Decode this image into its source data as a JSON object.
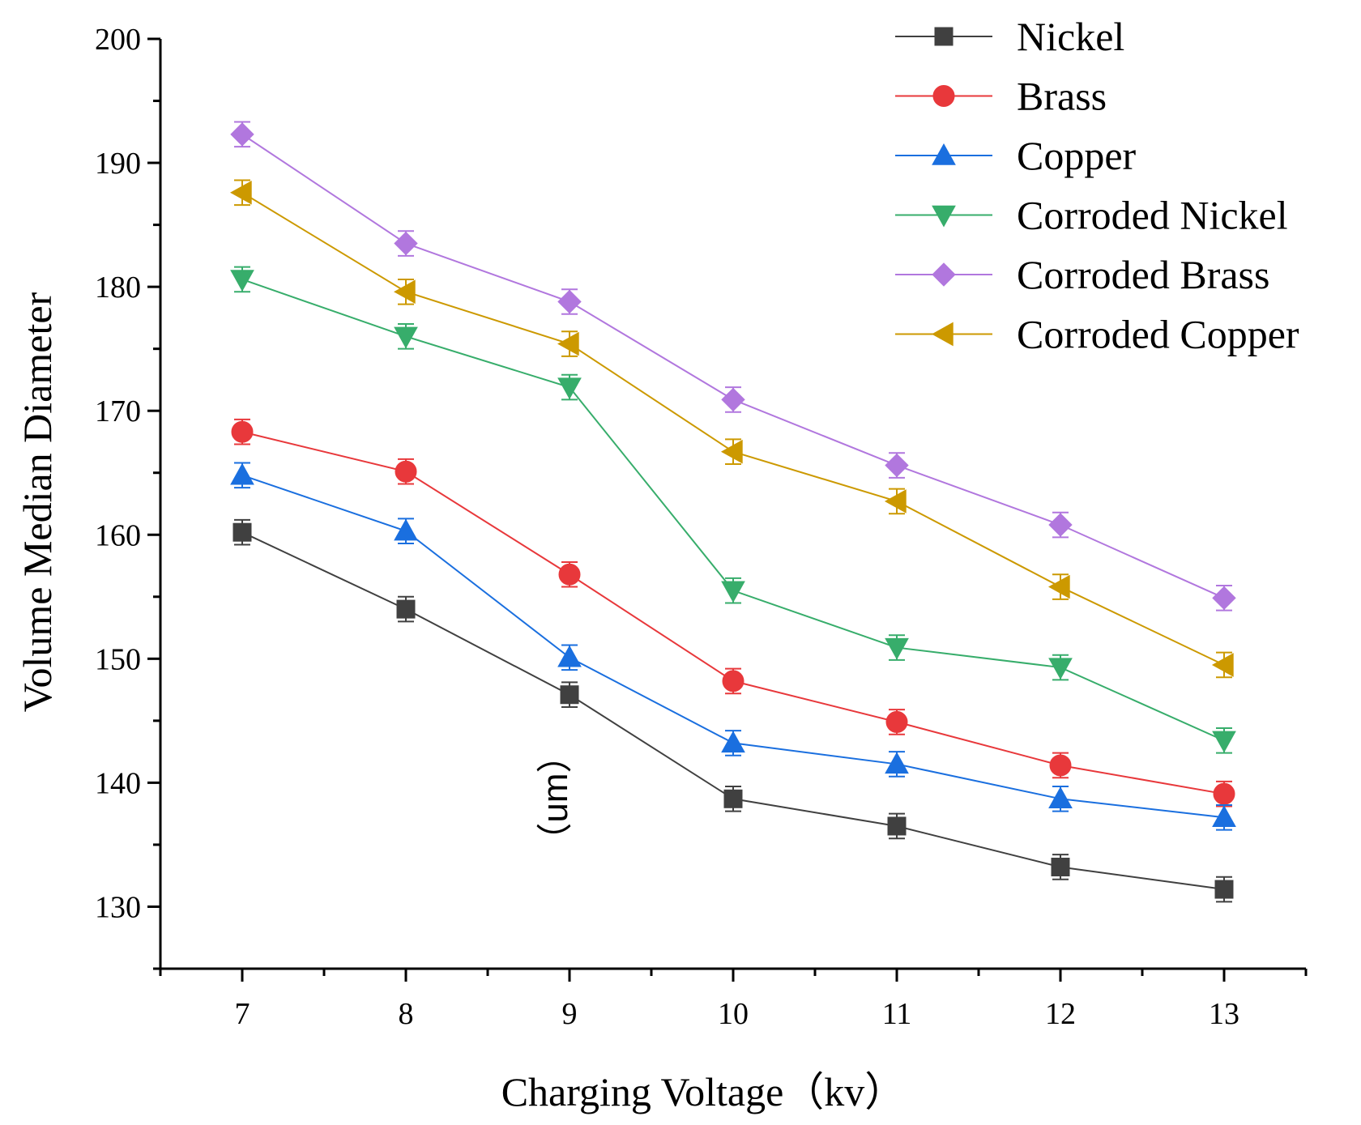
{
  "chart_data": {
    "type": "line",
    "title": "",
    "xlabel": "Charging Voltage（kv）",
    "ylabel": "Volume Median Diameter",
    "stray_label": "（um）",
    "x": [
      7,
      8,
      9,
      10,
      11,
      12,
      13
    ],
    "xlim": [
      6.5,
      13.5
    ],
    "ylim": [
      125,
      200
    ],
    "xticks": [
      "7",
      "8",
      "9",
      "10",
      "11",
      "12",
      "13"
    ],
    "yticks": [
      "130",
      "140",
      "150",
      "160",
      "170",
      "180",
      "190",
      "200"
    ],
    "legend_position": "top-right",
    "error_bar": 1.0,
    "series": [
      {
        "name": "Nickel",
        "marker": "square",
        "color": "#404040",
        "values": [
          160.2,
          154.0,
          147.1,
          138.7,
          136.5,
          133.2,
          131.4
        ]
      },
      {
        "name": "Brass",
        "marker": "circle",
        "color": "#e8383b",
        "values": [
          168.3,
          165.1,
          156.8,
          148.2,
          144.9,
          141.4,
          139.1
        ]
      },
      {
        "name": "Copper",
        "marker": "triangle-up",
        "color": "#1a6fdf",
        "values": [
          164.8,
          160.3,
          150.1,
          143.2,
          141.5,
          138.7,
          137.2
        ]
      },
      {
        "name": "Corroded Nickel",
        "marker": "triangle-down",
        "color": "#37ad6b",
        "values": [
          180.6,
          176.0,
          171.9,
          155.5,
          150.9,
          149.3,
          143.4
        ]
      },
      {
        "name": "Corroded Brass",
        "marker": "diamond",
        "color": "#b177de",
        "values": [
          192.3,
          183.5,
          178.8,
          170.9,
          165.6,
          160.8,
          154.9
        ]
      },
      {
        "name": "Corroded Copper",
        "marker": "triangle-left",
        "color": "#cc9900",
        "values": [
          187.6,
          179.6,
          175.4,
          166.7,
          162.7,
          155.8,
          149.5
        ]
      }
    ]
  }
}
